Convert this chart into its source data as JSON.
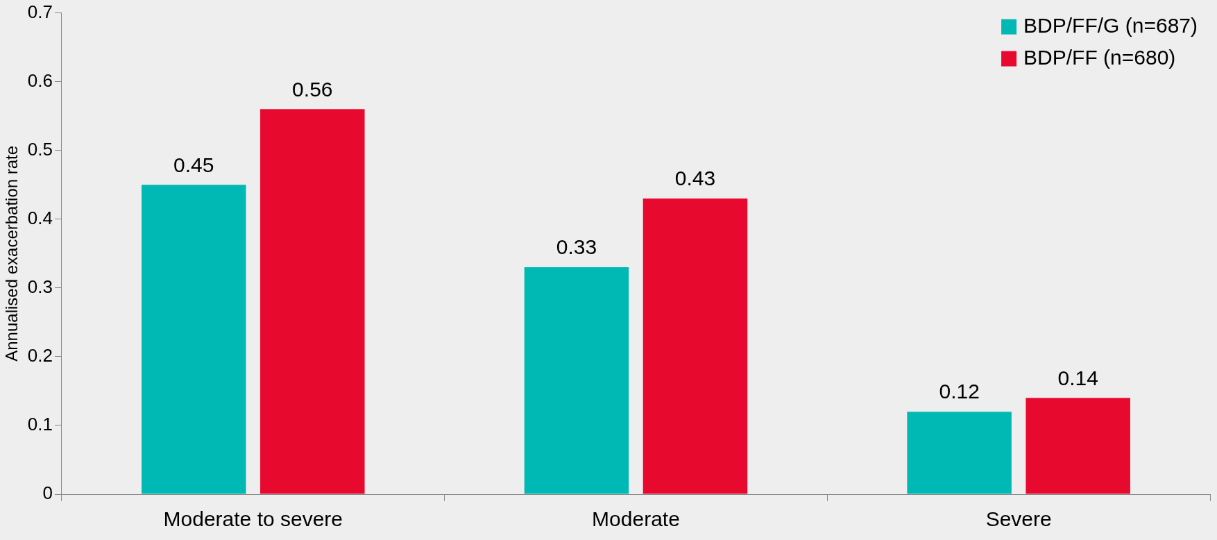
{
  "chart_data": {
    "type": "bar",
    "ylabel": "Annualised exacerbation rate",
    "categories": [
      "Moderate to severe",
      "Moderate",
      "Severe"
    ],
    "series": [
      {
        "name": "BDP/FF/G (n=687)",
        "color": "#00b9b4",
        "values": [
          0.45,
          0.33,
          0.12
        ]
      },
      {
        "name": "BDP/FF (n=680)",
        "color": "#e8092e",
        "values": [
          0.56,
          0.43,
          0.14
        ]
      }
    ],
    "ylim": [
      0,
      0.7
    ],
    "yticks": [
      0,
      0.1,
      0.2,
      0.3,
      0.4,
      0.5,
      0.6,
      0.7
    ],
    "grid": false,
    "legend": "top right",
    "data_labels": true
  }
}
